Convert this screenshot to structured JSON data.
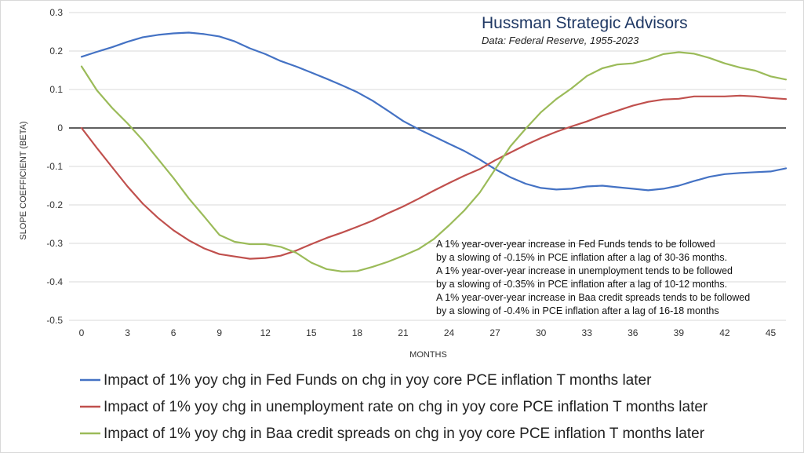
{
  "chart_data": {
    "type": "line",
    "brand": "Hussman Strategic Advisors",
    "source": "Data: Federal Reserve, 1955-2023",
    "xlabel": "MONTHS",
    "ylabel": "SLOPE COEFFICIENT (BETA)",
    "xlim": [
      0,
      46
    ],
    "ylim": [
      -0.5,
      0.3
    ],
    "xticks": [
      0,
      3,
      6,
      9,
      12,
      15,
      18,
      21,
      24,
      27,
      30,
      33,
      36,
      39,
      42,
      45
    ],
    "yticks": [
      "0.3",
      "0.2",
      "0.1",
      "0",
      "-0.1",
      "-0.2",
      "-0.3",
      "-0.4",
      "-0.5"
    ],
    "ytick_values": [
      0.3,
      0.2,
      0.1,
      0,
      -0.1,
      -0.2,
      -0.3,
      -0.4,
      -0.5
    ],
    "annotations": [
      "A 1% year-over-year increase in Fed Funds tends to be followed",
      "by a slowing of -0.15% in PCE inflation after a lag of 30-36 months.",
      "A 1% year-over-year increase in unemployment tends to be followed",
      "by a slowing of -0.35% in PCE inflation after a lag of 10-12 months.",
      "A 1% year-over-year increase in Baa credit spreads tends to be followed",
      "by a slowing of -0.4% in PCE inflation after a lag of 16-18 months"
    ],
    "series": [
      {
        "name": "Impact of 1% yoy chg in Fed Funds on chg in yoy core PCE inflation T months later",
        "color": "#4472c4",
        "x": [
          0,
          1,
          2,
          3,
          4,
          5,
          6,
          7,
          8,
          9,
          10,
          11,
          12,
          13,
          14,
          15,
          16,
          17,
          18,
          19,
          20,
          21,
          22,
          23,
          24,
          25,
          26,
          27,
          28,
          29,
          30,
          31,
          32,
          33,
          34,
          35,
          36,
          37,
          38,
          39,
          40,
          41,
          42,
          43,
          44,
          45,
          46
        ],
        "values": [
          0.185,
          0.198,
          0.21,
          0.224,
          0.236,
          0.242,
          0.246,
          0.248,
          0.244,
          0.238,
          0.225,
          0.207,
          0.192,
          0.174,
          0.16,
          0.144,
          0.128,
          0.111,
          0.093,
          0.071,
          0.045,
          0.018,
          -0.003,
          -0.022,
          -0.041,
          -0.06,
          -0.082,
          -0.107,
          -0.128,
          -0.145,
          -0.156,
          -0.16,
          -0.158,
          -0.152,
          -0.15,
          -0.154,
          -0.158,
          -0.162,
          -0.158,
          -0.15,
          -0.138,
          -0.127,
          -0.12,
          -0.117,
          -0.115,
          -0.113,
          -0.105
        ]
      },
      {
        "name": "Impact of 1% yoy chg in unemployment rate on chg in yoy core PCE inflation T months later",
        "color": "#c0504d",
        "x": [
          0,
          1,
          2,
          3,
          4,
          5,
          6,
          7,
          8,
          9,
          10,
          11,
          12,
          13,
          14,
          15,
          16,
          17,
          18,
          19,
          20,
          21,
          22,
          23,
          24,
          25,
          26,
          27,
          28,
          29,
          30,
          31,
          32,
          33,
          34,
          35,
          36,
          37,
          38,
          39,
          40,
          41,
          42,
          43,
          44,
          45,
          46
        ],
        "values": [
          0.0,
          -0.052,
          -0.102,
          -0.152,
          -0.197,
          -0.234,
          -0.266,
          -0.292,
          -0.313,
          -0.328,
          -0.334,
          -0.34,
          -0.338,
          -0.332,
          -0.319,
          -0.302,
          -0.286,
          -0.272,
          -0.257,
          -0.241,
          -0.222,
          -0.204,
          -0.184,
          -0.163,
          -0.143,
          -0.124,
          -0.107,
          -0.084,
          -0.064,
          -0.044,
          -0.026,
          -0.01,
          0.004,
          0.017,
          0.032,
          0.045,
          0.058,
          0.068,
          0.074,
          0.076,
          0.082,
          0.082,
          0.082,
          0.084,
          0.082,
          0.078,
          0.075
        ]
      },
      {
        "name": "Impact of 1% yoy chg in Baa credit spreads on chg in yoy core PCE inflation T months later",
        "color": "#9bbb59",
        "x": [
          0,
          1,
          2,
          3,
          4,
          5,
          6,
          7,
          8,
          9,
          10,
          11,
          12,
          13,
          14,
          15,
          16,
          17,
          18,
          19,
          20,
          21,
          22,
          23,
          24,
          25,
          26,
          27,
          28,
          29,
          30,
          31,
          32,
          33,
          34,
          35,
          36,
          37,
          38,
          39,
          40,
          41,
          42,
          43,
          44,
          45,
          46
        ],
        "values": [
          0.16,
          0.098,
          0.052,
          0.012,
          -0.032,
          -0.081,
          -0.13,
          -0.183,
          -0.23,
          -0.278,
          -0.296,
          -0.302,
          -0.302,
          -0.309,
          -0.324,
          -0.35,
          -0.367,
          -0.373,
          -0.372,
          -0.361,
          -0.348,
          -0.332,
          -0.315,
          -0.289,
          -0.253,
          -0.214,
          -0.168,
          -0.108,
          -0.048,
          -0.002,
          0.041,
          0.075,
          0.103,
          0.135,
          0.155,
          0.165,
          0.168,
          0.178,
          0.192,
          0.197,
          0.193,
          0.182,
          0.168,
          0.157,
          0.149,
          0.134,
          0.126
        ]
      }
    ]
  }
}
